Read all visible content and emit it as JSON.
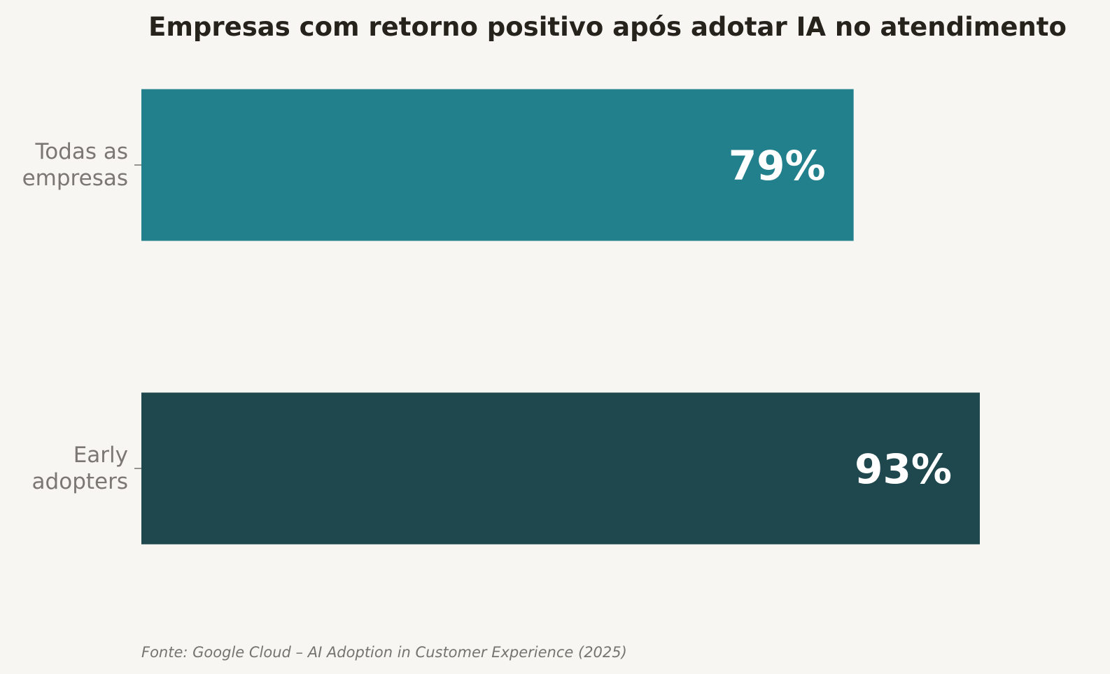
{
  "chart_data": {
    "type": "bar",
    "orientation": "horizontal",
    "title": "Empresas com retorno positivo após adotar IA no atendimento",
    "categories": [
      [
        "Todas as",
        "empresas"
      ],
      [
        "Early",
        "adopters"
      ]
    ],
    "values": [
      79,
      93
    ],
    "value_labels": [
      "79%",
      "93%"
    ],
    "xlim": [
      0,
      93
    ],
    "xlabel": "",
    "ylabel": "",
    "grid": false,
    "colors": [
      "#21808c",
      "#1e484e"
    ],
    "source_note": "Fonte: Google Cloud – AI Adoption in Customer Experience (2025)"
  }
}
